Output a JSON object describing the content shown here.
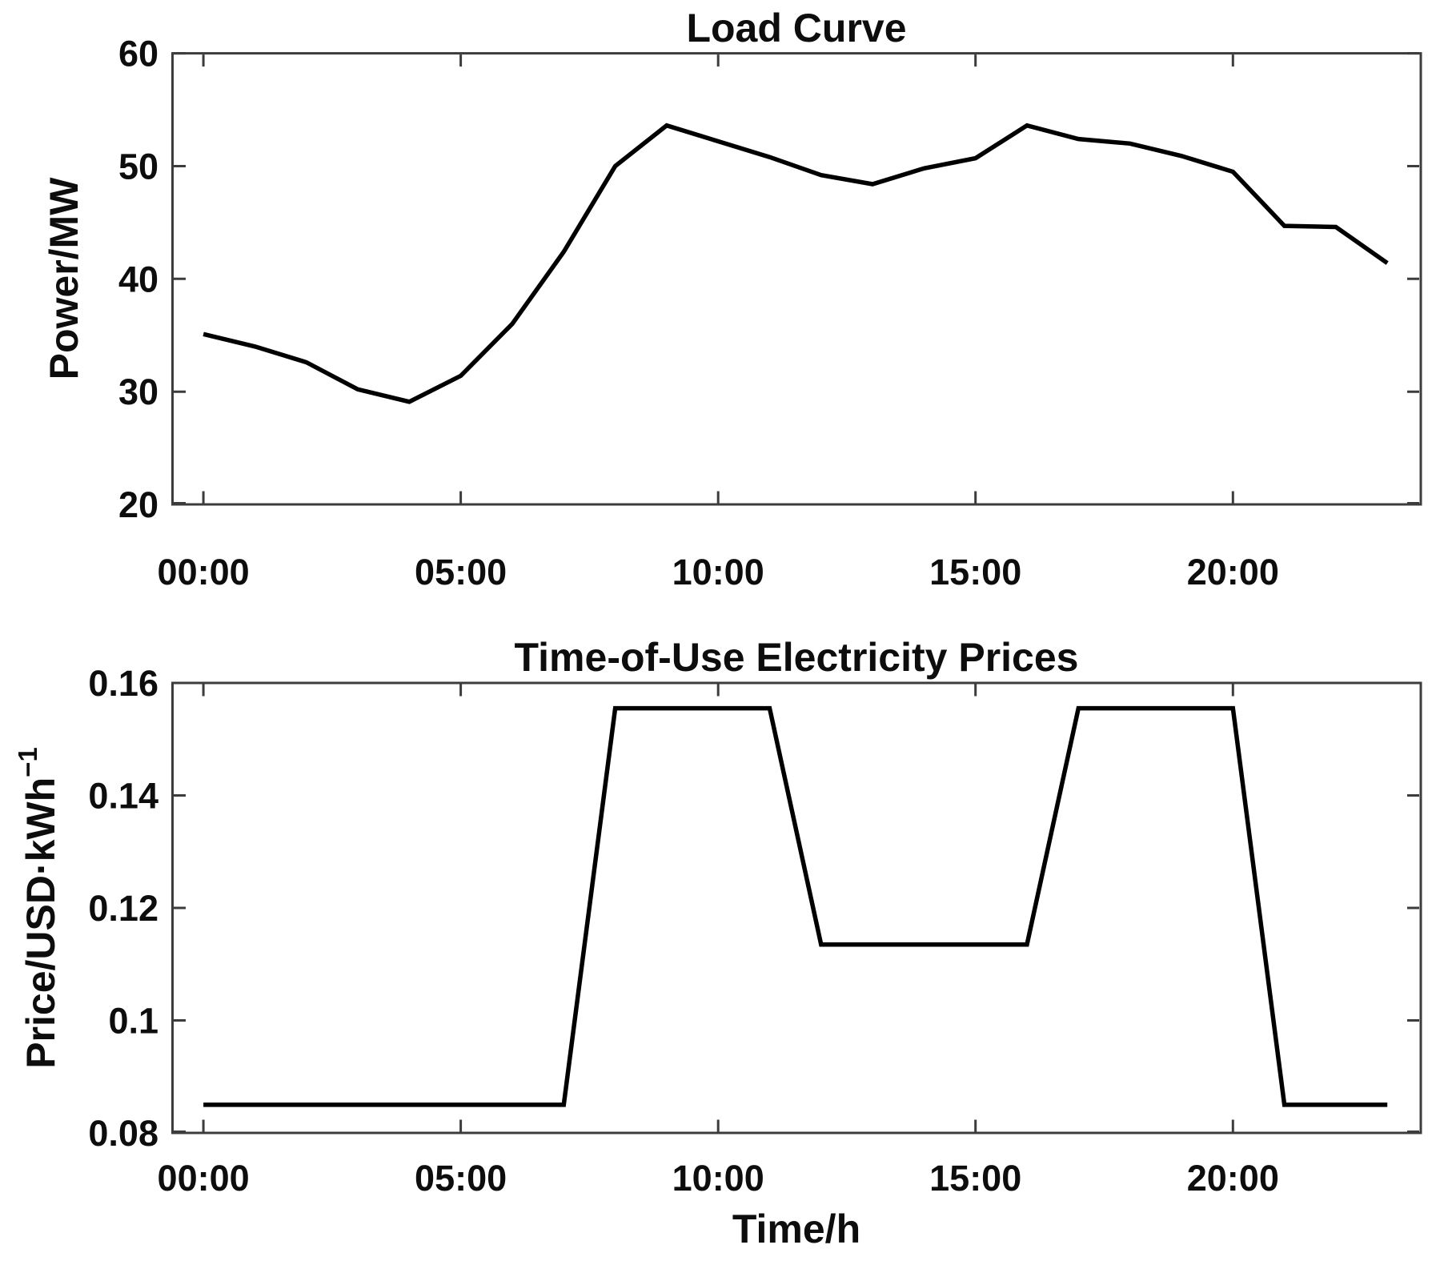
{
  "figure": {
    "background": "#ffffff",
    "axes_color": "#3c3c3c",
    "text_color": "#0d0d0d"
  },
  "chart_data": [
    {
      "type": "line",
      "title": "Load Curve",
      "ylabel": "Power/MW",
      "xlabel": "",
      "grid": false,
      "legend": null,
      "line_color": "#000000",
      "line_width": 5.5,
      "xlim": [
        -0.6,
        23.65
      ],
      "ylim": [
        20,
        60
      ],
      "x": [
        0,
        1,
        2,
        3,
        4,
        5,
        6,
        7,
        8,
        9,
        10,
        11,
        12,
        13,
        14,
        15,
        16,
        17,
        18,
        19,
        20,
        21,
        22,
        23
      ],
      "values": [
        35.1,
        34.0,
        32.6,
        30.2,
        29.1,
        31.4,
        36.0,
        42.4,
        50.0,
        53.6,
        52.2,
        50.8,
        49.2,
        48.4,
        49.8,
        50.7,
        53.6,
        52.4,
        52.0,
        50.9,
        49.5,
        44.7,
        44.6,
        41.4
      ],
      "yticks": [
        {
          "v": 20,
          "label": "20"
        },
        {
          "v": 30,
          "label": "30"
        },
        {
          "v": 40,
          "label": "40"
        },
        {
          "v": 50,
          "label": "50"
        },
        {
          "v": 60,
          "label": "60"
        }
      ],
      "xticks": [
        {
          "v": 0,
          "label": "00:00"
        },
        {
          "v": 5,
          "label": "05:00"
        },
        {
          "v": 10,
          "label": "10:00"
        },
        {
          "v": 15,
          "label": "15:00"
        },
        {
          "v": 20,
          "label": "20:00"
        }
      ]
    },
    {
      "type": "line",
      "title": "Time-of-Use Electricity Prices",
      "ylabel_main": "Price/USD·kWh",
      "ylabel_sup": "−1",
      "xlabel": "Time/h",
      "grid": false,
      "legend": null,
      "line_color": "#000000",
      "line_width": 5.5,
      "xlim": [
        -0.6,
        23.65
      ],
      "ylim": [
        0.08,
        0.16
      ],
      "x": [
        0,
        1,
        2,
        3,
        4,
        5,
        6,
        7,
        8,
        9,
        10,
        11,
        12,
        13,
        14,
        15,
        16,
        17,
        18,
        19,
        20,
        21,
        22,
        23
      ],
      "values": [
        0.085,
        0.085,
        0.085,
        0.085,
        0.085,
        0.085,
        0.085,
        0.085,
        0.1555,
        0.1555,
        0.1555,
        0.1555,
        0.1135,
        0.1135,
        0.1135,
        0.1135,
        0.1135,
        0.1555,
        0.1555,
        0.1555,
        0.1555,
        0.085,
        0.085,
        0.085
      ],
      "price_levels": {
        "off_peak": 0.085,
        "mid_peak": 0.1135,
        "on_peak": 0.1555
      },
      "yticks": [
        {
          "v": 0.08,
          "label": "0.08"
        },
        {
          "v": 0.1,
          "label": "0.1"
        },
        {
          "v": 0.12,
          "label": "0.12"
        },
        {
          "v": 0.14,
          "label": "0.14"
        },
        {
          "v": 0.16,
          "label": "0.16"
        }
      ],
      "xticks": [
        {
          "v": 0,
          "label": "00:00"
        },
        {
          "v": 5,
          "label": "05:00"
        },
        {
          "v": 10,
          "label": "10:00"
        },
        {
          "v": 15,
          "label": "15:00"
        },
        {
          "v": 20,
          "label": "20:00"
        }
      ]
    }
  ]
}
